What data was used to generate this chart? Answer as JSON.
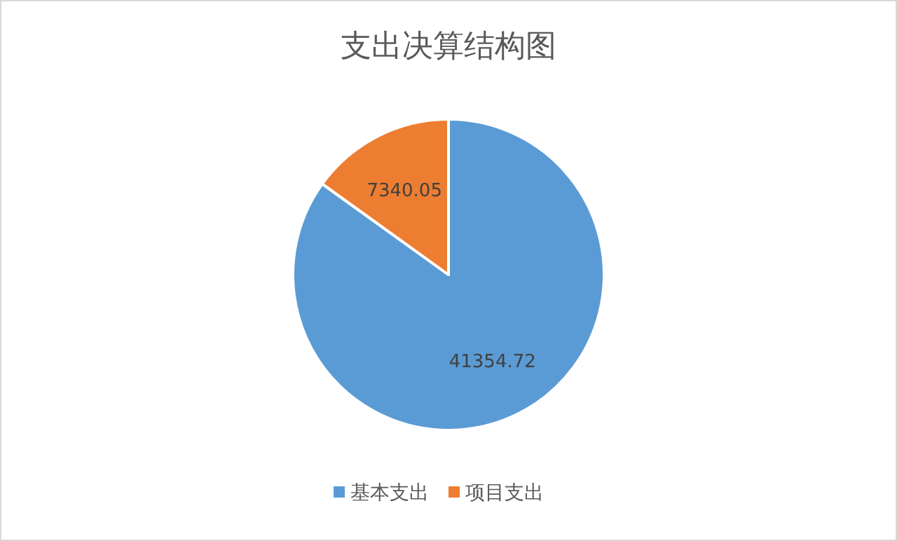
{
  "chart_data": {
    "type": "pie",
    "title": "支出决算结构图",
    "categories": [
      "基本支出",
      "项目支出"
    ],
    "values": [
      41354.72,
      7340.05
    ],
    "colors": [
      "#5b9bd5",
      "#ed7d31"
    ],
    "data_labels": true,
    "legend": "bottom"
  }
}
